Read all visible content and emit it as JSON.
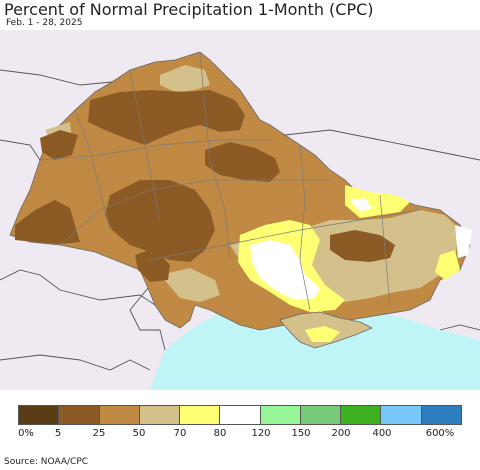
{
  "header": {
    "title": "Percent of Normal Precipitation 1-Month (CPC)",
    "date_range": "Feb. 1 - 28, 2025"
  },
  "colors": {
    "background": "#efe9f1",
    "water": "#bff5f7",
    "border": "#7a7a7a"
  },
  "legend": {
    "colors": [
      "#5a3d14",
      "#8c5a25",
      "#c08a45",
      "#d4c08a",
      "#ffff73",
      "#ffffff",
      "#96f596",
      "#78c978",
      "#3cb01e",
      "#78c8fa",
      "#2c7ebf"
    ],
    "labels": [
      "0%",
      "5",
      "25",
      "50",
      "70",
      "80",
      "120",
      "150",
      "200",
      "400",
      "600%"
    ]
  },
  "footer": {
    "source": "Source: NOAA/CPC"
  }
}
